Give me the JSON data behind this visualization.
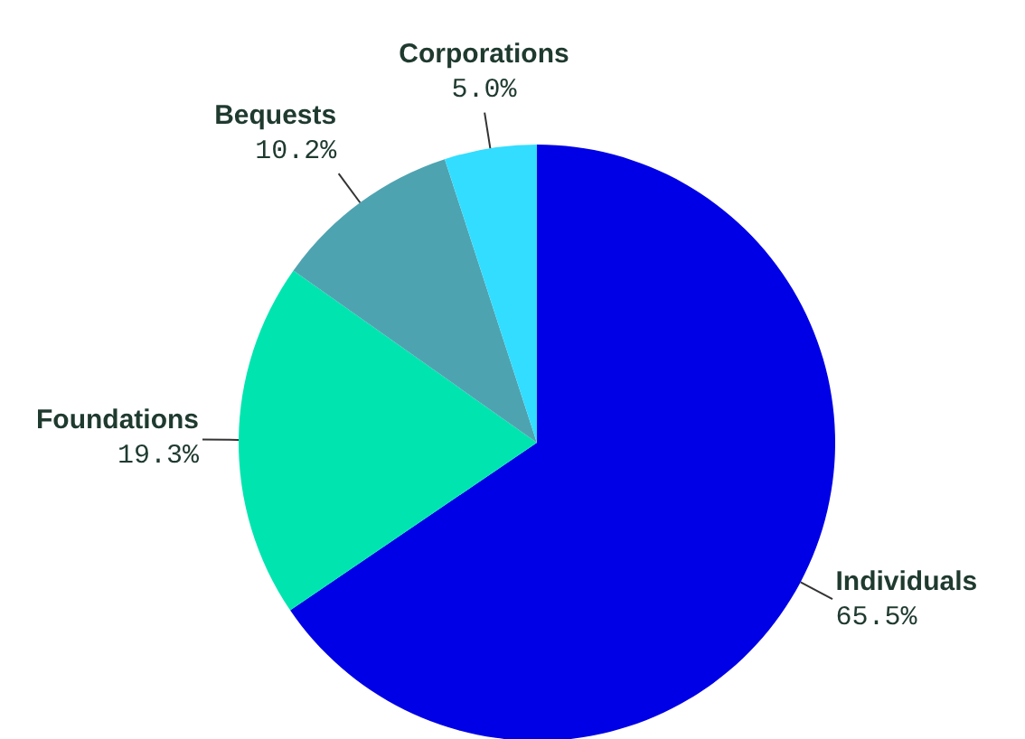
{
  "chart_data": {
    "type": "pie",
    "categories": [
      "Individuals",
      "Foundations",
      "Bequests",
      "Corporations"
    ],
    "values": [
      65.5,
      19.3,
      10.2,
      5.0
    ],
    "value_labels": [
      "65.5%",
      "19.3%",
      "10.2%",
      "5.0%"
    ],
    "colors": [
      "#0000e6",
      "#00e5b0",
      "#4ea3b1",
      "#33ddff"
    ]
  }
}
